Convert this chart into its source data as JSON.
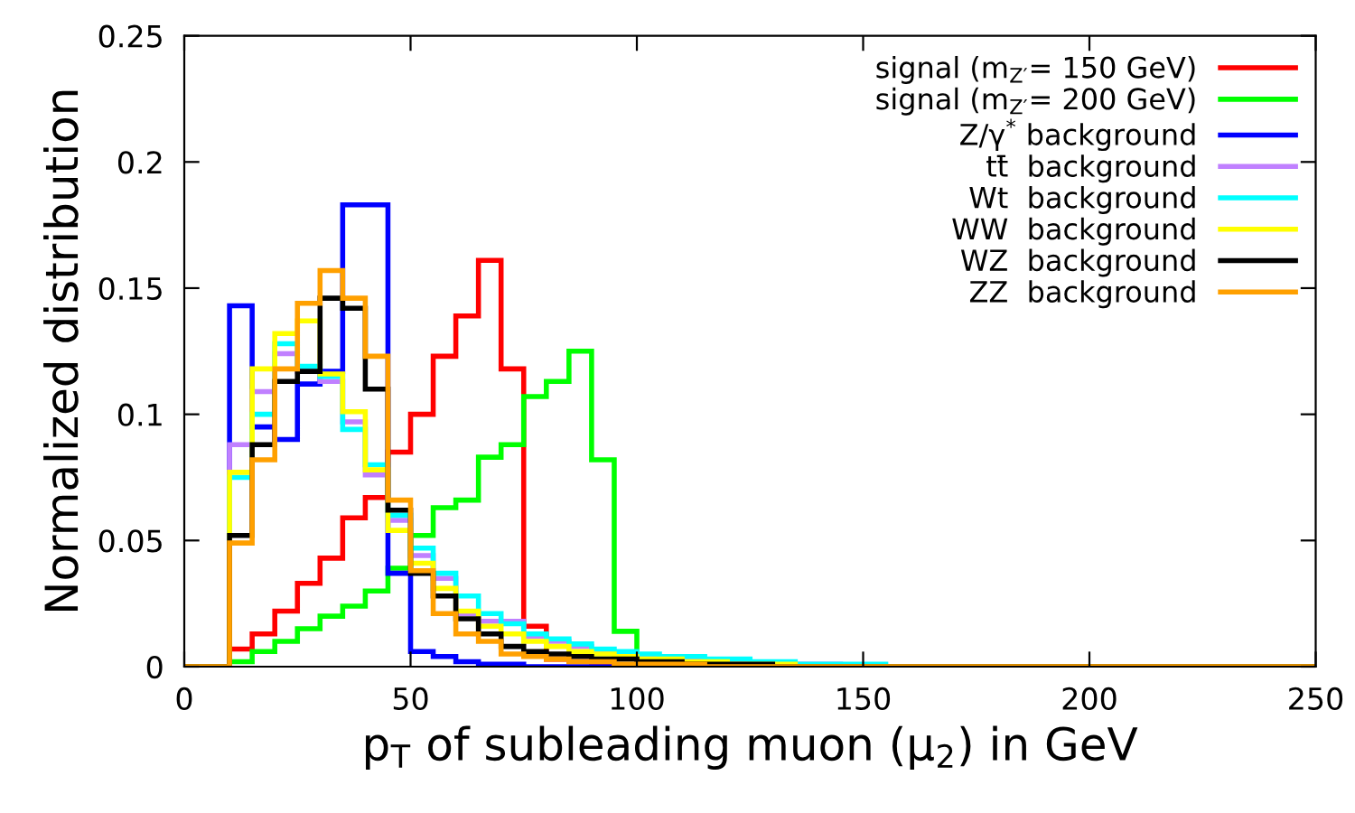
{
  "chart_data": {
    "type": "histogram",
    "xlabel": "p$_{T}$ of subleading muon (μ$_{2}$) in GeV",
    "ylabel": "Normalized distribution",
    "bins": [
      0,
      5,
      10,
      15,
      20,
      25,
      30,
      35,
      40,
      45,
      50,
      55,
      60,
      65,
      70,
      75,
      80,
      85,
      90,
      95,
      100,
      105,
      110,
      115,
      120,
      125,
      130,
      135,
      140,
      145,
      150,
      155,
      160,
      165,
      170,
      175,
      180,
      185,
      190,
      195,
      200,
      205,
      210,
      215,
      220,
      225,
      230,
      235,
      240,
      245,
      250
    ],
    "series": [
      {
        "name": "signal (m$_{Z′}$= 150 GeV)",
        "color": "#ff0000",
        "values": [
          0,
          0,
          0.007,
          0.013,
          0.022,
          0.033,
          0.043,
          0.059,
          0.067,
          0.085,
          0.1,
          0.123,
          0.139,
          0.161,
          0.118,
          0.016,
          0.003,
          0.002,
          0.001,
          0,
          0,
          0,
          0,
          0,
          0,
          0,
          0,
          0,
          0,
          0,
          0,
          0,
          0,
          0,
          0,
          0,
          0,
          0,
          0,
          0,
          0,
          0,
          0,
          0,
          0,
          0,
          0,
          0,
          0,
          0
        ]
      },
      {
        "name": "signal (m$_{Z′}$= 200 GeV)",
        "color": "#00ff00",
        "values": [
          0,
          0,
          0.002,
          0.006,
          0.01,
          0.015,
          0.02,
          0.024,
          0.03,
          0.039,
          0.052,
          0.063,
          0.066,
          0.083,
          0.088,
          0.107,
          0.113,
          0.125,
          0.082,
          0.014,
          0.004,
          0.002,
          0.001,
          0,
          0,
          0,
          0,
          0,
          0,
          0,
          0,
          0,
          0,
          0,
          0,
          0,
          0,
          0,
          0,
          0,
          0,
          0,
          0,
          0,
          0,
          0,
          0,
          0,
          0,
          0
        ]
      },
      {
        "name": "Z/γ$^{*}$ background",
        "color": "#0000ff",
        "values": [
          0,
          0,
          0.143,
          0.095,
          0.09,
          0.112,
          0.117,
          0.183,
          0.183,
          0.037,
          0.006,
          0.004,
          0.002,
          0.001,
          0.001,
          0,
          0,
          0,
          0,
          0,
          0,
          0,
          0,
          0,
          0,
          0,
          0,
          0,
          0,
          0,
          0,
          0,
          0,
          0,
          0,
          0,
          0,
          0,
          0,
          0,
          0,
          0,
          0,
          0,
          0,
          0,
          0,
          0,
          0,
          0
        ]
      },
      {
        "name": "tt̄  background",
        "color": "#c080ff",
        "values": [
          0,
          0,
          0.088,
          0.109,
          0.124,
          0.117,
          0.113,
          0.097,
          0.076,
          0.058,
          0.044,
          0.035,
          0.021,
          0.018,
          0.018,
          0.012,
          0.01,
          0.008,
          0.006,
          0.005,
          0.004,
          0.003,
          0.003,
          0.002,
          0.002,
          0.001,
          0.001,
          0.001,
          0.001,
          0,
          0,
          0,
          0,
          0,
          0,
          0,
          0,
          0,
          0,
          0,
          0,
          0,
          0,
          0,
          0,
          0,
          0,
          0,
          0,
          0
        ]
      },
      {
        "name": "Wt  background",
        "color": "#00ffff",
        "values": [
          0,
          0,
          0.075,
          0.1,
          0.128,
          0.119,
          0.115,
          0.094,
          0.08,
          0.06,
          0.047,
          0.037,
          0.028,
          0.021,
          0.017,
          0.013,
          0.011,
          0.009,
          0.007,
          0.006,
          0.005,
          0.004,
          0.004,
          0.003,
          0.003,
          0.002,
          0.002,
          0.001,
          0.001,
          0.001,
          0.001,
          0,
          0,
          0,
          0,
          0,
          0,
          0,
          0,
          0,
          0,
          0,
          0,
          0,
          0,
          0,
          0,
          0,
          0,
          0
        ]
      },
      {
        "name": "WW  background",
        "color": "#ffff00",
        "values": [
          0,
          0,
          0.077,
          0.118,
          0.132,
          0.137,
          0.116,
          0.101,
          0.078,
          0.054,
          0.041,
          0.031,
          0.022,
          0.016,
          0.013,
          0.01,
          0.008,
          0.006,
          0.005,
          0.004,
          0.003,
          0.003,
          0.002,
          0.002,
          0.001,
          0.001,
          0.001,
          0,
          0,
          0,
          0,
          0,
          0,
          0,
          0,
          0,
          0,
          0,
          0,
          0,
          0,
          0,
          0,
          0,
          0,
          0,
          0,
          0,
          0,
          0
        ]
      },
      {
        "name": "WZ  background",
        "color": "#000000",
        "values": [
          0,
          0,
          0.052,
          0.088,
          0.113,
          0.117,
          0.146,
          0.142,
          0.11,
          0.062,
          0.037,
          0.028,
          0.019,
          0.013,
          0.008,
          0.006,
          0.005,
          0.004,
          0.003,
          0.003,
          0.002,
          0.002,
          0.001,
          0.001,
          0.001,
          0.001,
          0,
          0,
          0,
          0,
          0,
          0,
          0,
          0,
          0,
          0,
          0,
          0,
          0,
          0,
          0,
          0,
          0,
          0,
          0,
          0,
          0,
          0,
          0,
          0
        ]
      },
      {
        "name": "ZZ  background",
        "color": "#ffa000",
        "values": [
          0,
          0,
          0.049,
          0.082,
          0.118,
          0.144,
          0.157,
          0.146,
          0.123,
          0.066,
          0.038,
          0.021,
          0.013,
          0.01,
          0.005,
          0.004,
          0.003,
          0.002,
          0.002,
          0.001,
          0.001,
          0.001,
          0.001,
          0,
          0,
          0,
          0,
          0,
          0,
          0,
          0,
          0,
          0,
          0,
          0,
          0,
          0,
          0,
          0,
          0,
          0,
          0,
          0,
          0,
          0,
          0,
          0,
          0,
          0,
          0
        ]
      }
    ],
    "xlim": [
      0,
      250
    ],
    "xticks": [
      0,
      50,
      100,
      150,
      200,
      250
    ],
    "ylim": [
      0,
      0.25
    ],
    "yticks": [
      0,
      0.05,
      0.1,
      0.15,
      0.2,
      0.25
    ],
    "legend": "top right",
    "grid": false
  }
}
